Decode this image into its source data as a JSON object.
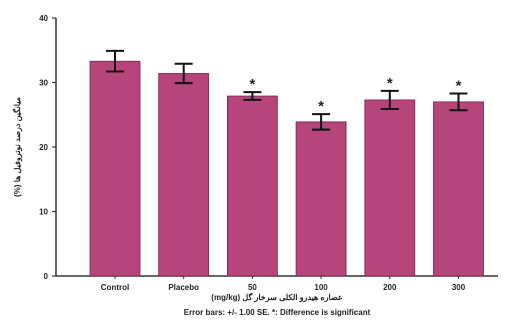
{
  "chart_data": {
    "type": "bar",
    "categories": [
      "Control",
      "Placebo",
      "50",
      "100",
      "200",
      "300"
    ],
    "values": [
      33.3,
      31.4,
      27.9,
      23.9,
      27.3,
      27.0
    ],
    "errors": [
      1.6,
      1.5,
      0.6,
      1.2,
      1.4,
      1.3
    ],
    "significant": [
      false,
      false,
      true,
      true,
      true,
      true
    ],
    "significance_marker": "*",
    "ylim": [
      0,
      40
    ],
    "yticks": [
      "0",
      "10",
      "20",
      "30",
      "40"
    ],
    "ylabel": "میانگین درصد نوتروفیل ها (%)",
    "xlabel": "عصاره هیدرو الکلی سرخار گل (mg/kg)",
    "note": "Error bars: +/- 1.00 SE. *: Difference is significant",
    "bar_color": "#b5457a",
    "grid": false
  }
}
